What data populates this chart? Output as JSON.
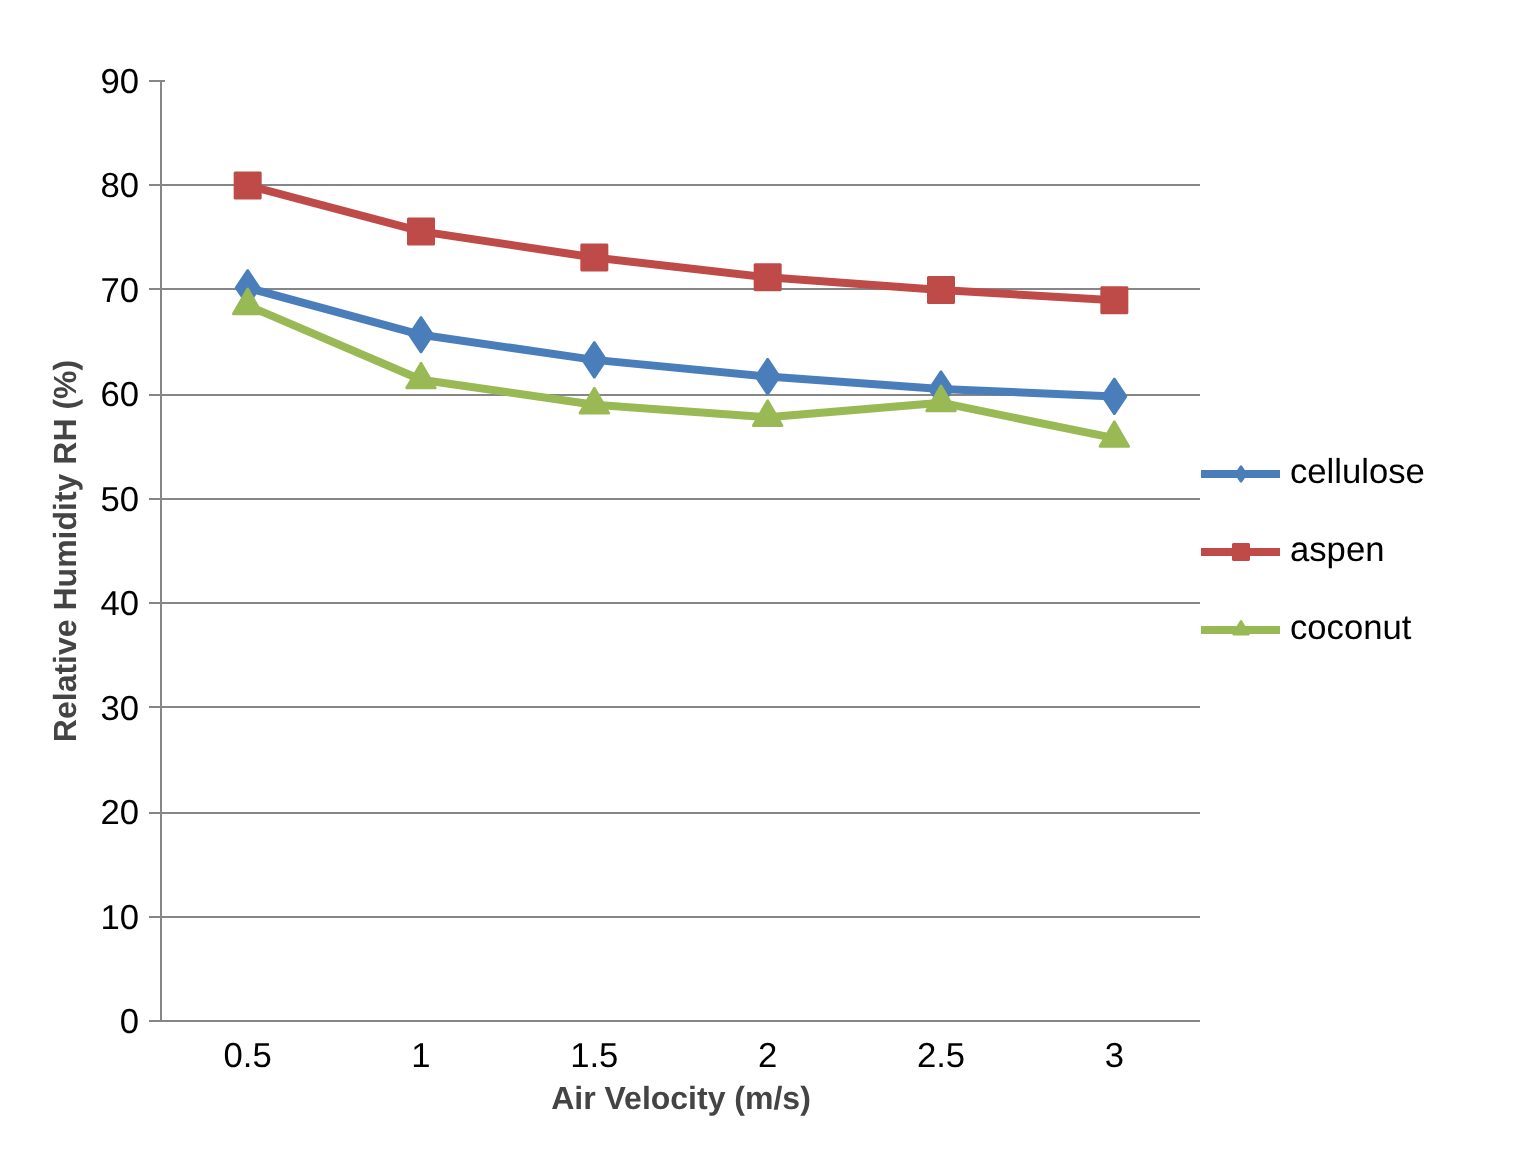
{
  "chart_data": {
    "type": "line",
    "xlabel": "Air Velocity (m/s)",
    "ylabel": "Relative Humidity RH (%)",
    "categories": [
      "0.5",
      "1",
      "1.5",
      "2",
      "2.5",
      "3"
    ],
    "series": [
      {
        "name": "cellulose",
        "color": "#4a7ebb",
        "marker": "diamond",
        "values": [
          70.2,
          65.7,
          63.3,
          61.7,
          60.5,
          59.8
        ]
      },
      {
        "name": "aspen",
        "color": "#be4b48",
        "marker": "square",
        "values": [
          80,
          75.6,
          73.1,
          71.2,
          70,
          69
        ]
      },
      {
        "name": "coconut",
        "color": "#98b954",
        "marker": "triangle",
        "values": [
          68.5,
          61.4,
          59,
          57.8,
          59.2,
          55.8
        ]
      }
    ],
    "ylim": [
      0,
      90
    ],
    "yticks": [
      0,
      10,
      20,
      30,
      40,
      50,
      60,
      70,
      80,
      90
    ],
    "grid": "y",
    "legend": "right"
  }
}
